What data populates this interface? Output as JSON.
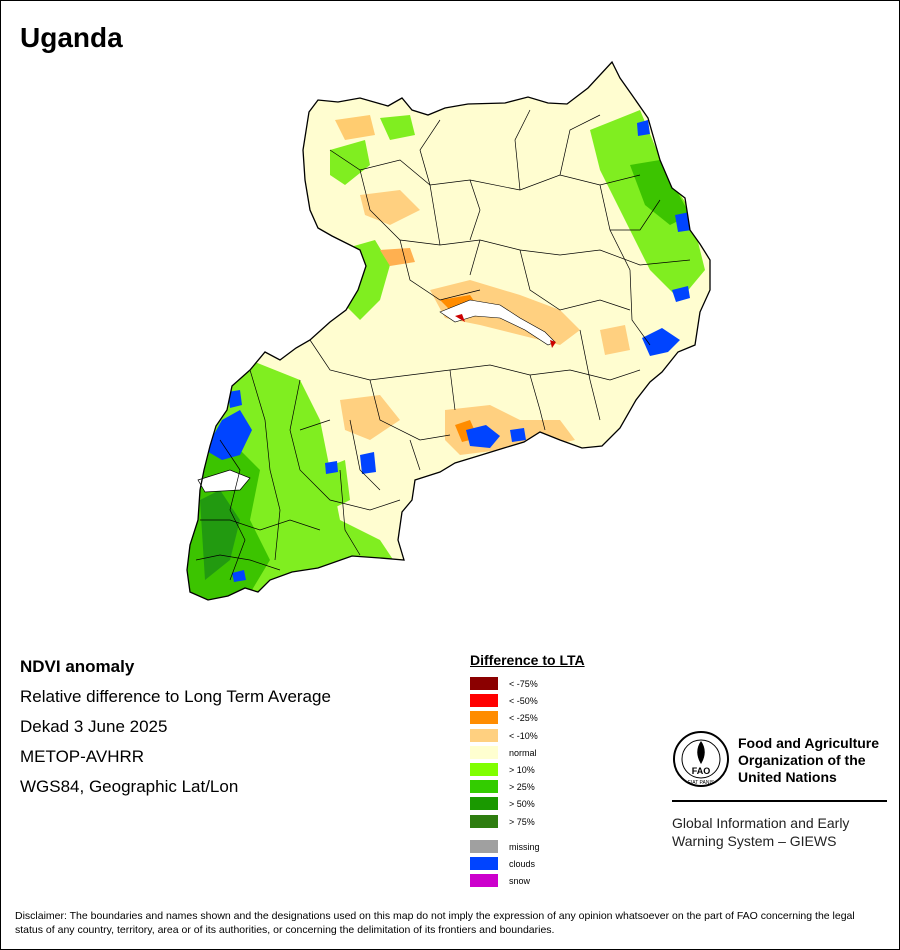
{
  "title": "Uganda",
  "info": {
    "heading": "NDVI anomaly",
    "subtitle": "Relative difference to Long Term Average",
    "period": "Dekad 3 June 2025",
    "sensor": "METOP-AVHRR",
    "projection": "WGS84, Geographic Lat/Lon"
  },
  "legend": {
    "title": "Difference to LTA",
    "items": [
      {
        "label": "< -75%",
        "color": "#8b0000"
      },
      {
        "label": "< -50%",
        "color": "#ff0000"
      },
      {
        "label": "< -25%",
        "color": "#ff8c00"
      },
      {
        "label": "< -10%",
        "color": "#ffd080"
      },
      {
        "label": "normal",
        "color": "#ffffd0"
      },
      {
        "label": "> 10%",
        "color": "#80ff00"
      },
      {
        "label": "> 25%",
        "color": "#33cc00"
      },
      {
        "label": "> 50%",
        "color": "#1a9900"
      },
      {
        "label": "> 75%",
        "color": "#2e7d10"
      }
    ],
    "extra": [
      {
        "label": "missing",
        "color": "#a0a0a0"
      },
      {
        "label": "clouds",
        "color": "#0044ff"
      },
      {
        "label": "snow",
        "color": "#cc00cc"
      }
    ]
  },
  "org": {
    "name_line1": "Food and Agriculture",
    "name_line2": "Organization of the",
    "name_line3": "United Nations",
    "system_line1": "Global Information and Early",
    "system_line2": "Warning System – GIEWS",
    "logo_text": "FAO",
    "logo_motto": "FIAT PANIS"
  },
  "disclaimer": "Disclaimer: The boundaries and names shown and the designations used on this map do not imply the expression of any opinion whatsoever on the part of FAO concerning the legal status of any country, territory, area or of its authorities, or concerning the delimitation of its frontiers and boundaries."
}
